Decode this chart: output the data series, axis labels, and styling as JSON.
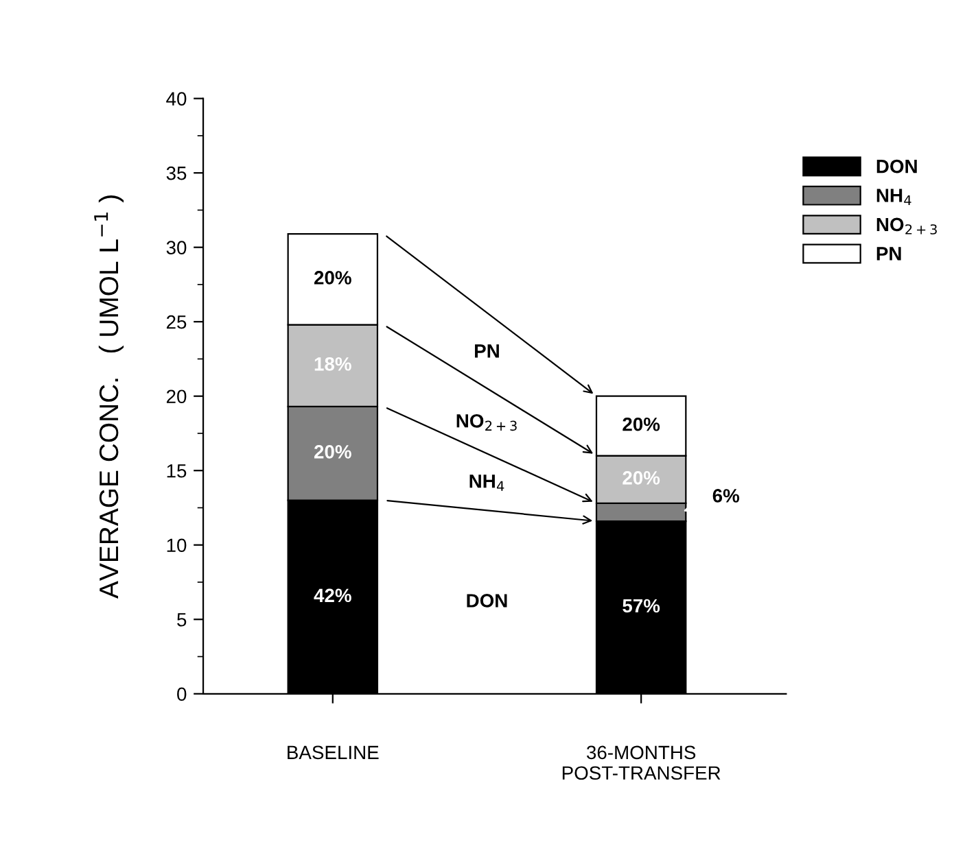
{
  "chart_data": {
    "type": "bar",
    "stacked": true,
    "categories": [
      "BASELINE",
      "36-MONTHS\nPOST-TRANSFER"
    ],
    "ylabel": "AVERAGE CONC.   ( UMOL L$^{−1}$ )",
    "ylim": [
      0,
      40
    ],
    "yticks": [
      0,
      5,
      10,
      15,
      20,
      25,
      30,
      35,
      40
    ],
    "grid": false,
    "legend": "top right",
    "series": [
      {
        "name": "DON",
        "color": "#000000",
        "values": [
          13.0,
          11.6
        ]
      },
      {
        "name": "NH$_{4}$",
        "color": "#808080",
        "values": [
          6.3,
          1.2
        ]
      },
      {
        "name": "NO$_{2+3}$",
        "color": "#c0c0c0",
        "values": [
          5.5,
          3.2
        ]
      },
      {
        "name": "PN",
        "color": "#ffffff",
        "values": [
          6.1,
          4.0
        ]
      }
    ],
    "annotations": [
      "PN",
      "NO$_{2+3}$",
      "NH$_{4}$",
      "DON",
      "42%",
      "20%",
      "18%",
      "20%",
      "57%",
      "6%",
      "20%",
      "20%"
    ]
  }
}
